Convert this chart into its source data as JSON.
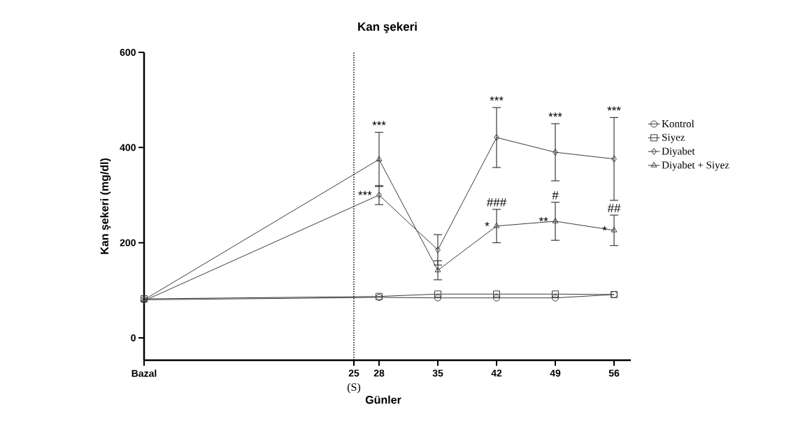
{
  "chart_data": {
    "type": "line",
    "title": "Kan şekeri",
    "xlabel": "Günler",
    "ylabel": "Kan şekeri (mg/dl)",
    "x": [
      0,
      28,
      35,
      42,
      49,
      56
    ],
    "xlim": [
      0,
      58
    ],
    "ylim": [
      -47,
      600
    ],
    "xticks": [
      {
        "value": 0,
        "label": "Bazal"
      },
      25,
      28,
      35,
      42,
      49,
      56
    ],
    "yticks": [
      0,
      200,
      400,
      600
    ],
    "series": [
      {
        "name": "Kontrol",
        "color": "#3a3a3a",
        "marker": "circle",
        "values": [
          80,
          85,
          84,
          84,
          84,
          91
        ]
      },
      {
        "name": "Siyez",
        "color": "#3a3a3a",
        "marker": "square",
        "values": [
          82,
          87,
          92,
          92,
          92,
          91
        ]
      },
      {
        "name": "Diyabet",
        "color": "#3a3a3a",
        "marker": "diamond",
        "values": [
          78,
          300,
          185,
          421,
          390,
          376
        ],
        "errors": [
          null,
          20,
          32,
          63,
          60,
          87
        ]
      },
      {
        "name": "Diyabet + Siyez",
        "color": "#3a3a3a",
        "marker": "triangle",
        "values": [
          80,
          375,
          142,
          235,
          245,
          226
        ],
        "errors": [
          null,
          57,
          20,
          35,
          40,
          32
        ]
      }
    ],
    "ref_lines": [
      {
        "axis": "x",
        "value": 25,
        "label": "(S)",
        "line_style": "dotted",
        "color": "#000000"
      }
    ],
    "annotations": [
      {
        "text": "***",
        "x": 28,
        "y": 432
      },
      {
        "text": "***",
        "x": 28,
        "y": 300
      },
      {
        "text": "***",
        "x": 42,
        "y": 484
      },
      {
        "text": "***",
        "x": 49,
        "y": 450
      },
      {
        "text": "***",
        "x": 56,
        "y": 463
      },
      {
        "text": "###",
        "x": 42,
        "y": 270
      },
      {
        "text": "#",
        "x": 49,
        "y": 285
      },
      {
        "text": "*",
        "x": 42,
        "y": 235
      },
      {
        "text": "**",
        "x": 49,
        "y": 245
      },
      {
        "text": "*",
        "x": 56,
        "y": 226
      },
      {
        "text": "##",
        "x": 56,
        "y": 258
      }
    ],
    "legend": "right",
    "grid": false,
    "line_style": "solid"
  }
}
